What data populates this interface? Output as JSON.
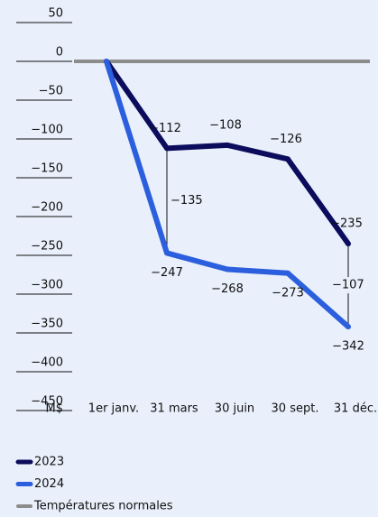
{
  "chart_data": {
    "type": "line",
    "categories": [
      "1er janv.",
      "31 mars",
      "30 juin",
      "30 sept.",
      "31 déc."
    ],
    "series": [
      {
        "name": "2023",
        "color": "#0c0c5c",
        "values": [
          0,
          -112,
          -108,
          -126,
          -235
        ],
        "value_labels": [
          null,
          "−112",
          "−108",
          "−126",
          "−235"
        ]
      },
      {
        "name": "2024",
        "color": "#2b5fde",
        "values": [
          0,
          -247,
          -268,
          -273,
          -342
        ],
        "value_labels": [
          null,
          "−247",
          "−268",
          "−273",
          "−342"
        ]
      }
    ],
    "differences": [
      null,
      -135,
      null,
      null,
      -107
    ],
    "difference_labels": [
      null,
      "−135",
      null,
      null,
      "−107"
    ],
    "reference": {
      "name": "Températures normales",
      "value": 0,
      "color": "#8c8c8c"
    },
    "ylabel": "M$",
    "ylim": [
      -450,
      50
    ],
    "yticks": [
      50,
      0,
      {
        "value": -50,
        "label": "−50"
      },
      {
        "value": -100,
        "label": "−100"
      },
      {
        "value": -150,
        "label": "−150"
      },
      {
        "value": -200,
        "label": "−200"
      },
      {
        "value": -250,
        "label": "−250"
      },
      {
        "value": -300,
        "label": "−300"
      },
      {
        "value": -350,
        "label": "−350"
      },
      {
        "value": -400,
        "label": "−400"
      },
      {
        "value": -450,
        "label": "−450"
      }
    ]
  }
}
